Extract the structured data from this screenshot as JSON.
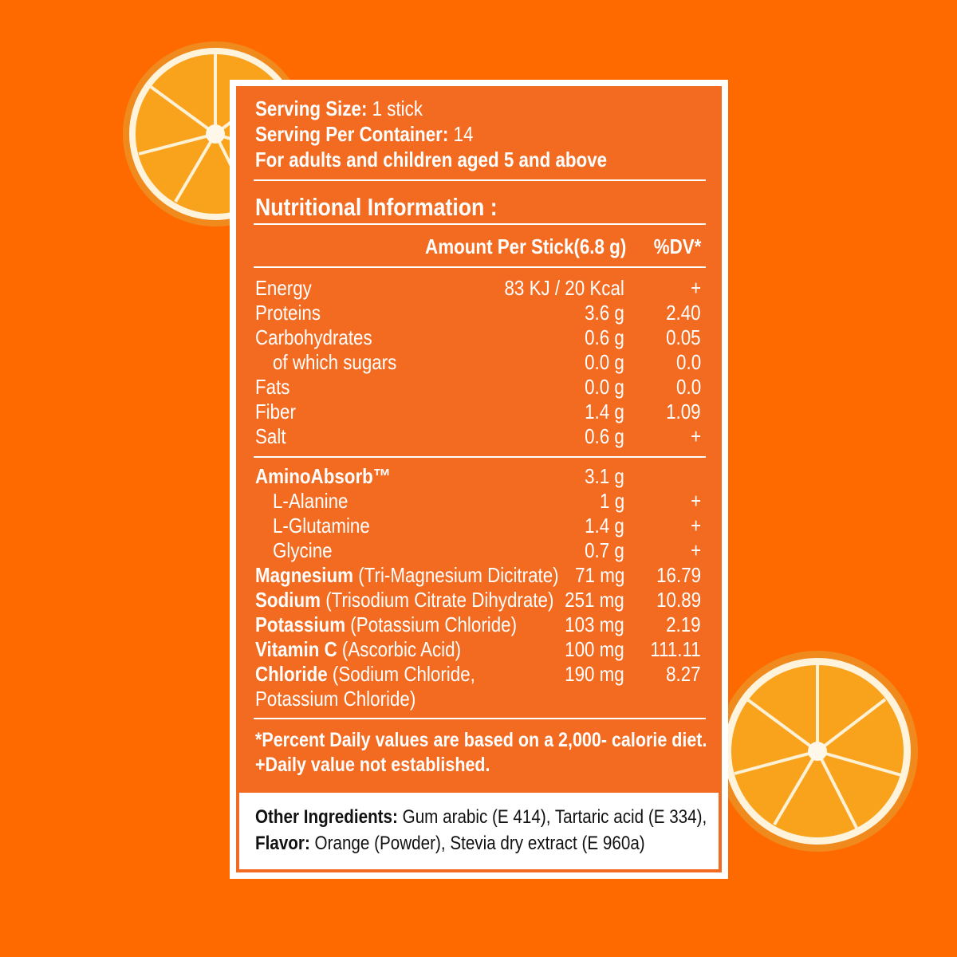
{
  "serving": {
    "size_label": "Serving Size:",
    "size_value": " 1 stick",
    "per_container_label": "Serving Per Container:",
    "per_container_value": " 14",
    "audience": "For adults and children aged 5 and above"
  },
  "nutrition": {
    "title": "Nutritional Information :",
    "col_amount": "Amount Per Stick(6.8 g)",
    "col_dv": "%DV*",
    "group1": [
      {
        "name": "Energy",
        "amount": "83 KJ / 20 Kcal",
        "dv": "+"
      },
      {
        "name": "Proteins",
        "amount": "3.6 g",
        "dv": "2.40"
      },
      {
        "name": "Carbohydrates",
        "amount": "0.6 g",
        "dv": "0.05"
      },
      {
        "name": "of which sugars",
        "amount": "0.0 g",
        "dv": "0.0"
      },
      {
        "name": "Fats",
        "amount": "0.0 g",
        "dv": "0.0"
      },
      {
        "name": "Fiber",
        "amount": "1.4 g",
        "dv": "1.09"
      },
      {
        "name": "Salt",
        "amount": "0.6 g",
        "dv": "+"
      }
    ],
    "group2": [
      {
        "name": "AminoAbsorb™",
        "amount": "3.1 g",
        "dv": ""
      },
      {
        "name": "L-Alanine",
        "amount": "1 g",
        "dv": "+"
      },
      {
        "name": "L-Glutamine",
        "amount": "1.4 g",
        "dv": "+"
      },
      {
        "name": "Glycine",
        "amount": "0.7 g",
        "dv": "+"
      },
      {
        "name": "Magnesium",
        "source": " (Tri-Magnesium Dicitrate)",
        "amount": "71 mg",
        "dv": "16.79"
      },
      {
        "name": "Sodium",
        "source": " (Trisodium Citrate Dihydrate)",
        "amount": "251 mg",
        "dv": "10.89"
      },
      {
        "name": "Potassium",
        "source": " (Potassium Chloride)",
        "amount": "103 mg",
        "dv": "2.19"
      },
      {
        "name": "Vitamin C",
        "source": " (Ascorbic Acid)",
        "amount": "100 mg",
        "dv": "111.11"
      },
      {
        "name": "Chloride",
        "source": " (Sodium Chloride, Potassium Chloride)",
        "amount": "190 mg",
        "dv": "8.27"
      }
    ]
  },
  "footnotes": {
    "line1": "*Percent Daily values are based on a 2,000- calorie diet.",
    "line2": "+Daily value not established."
  },
  "ingredients": {
    "label": "Other Ingredients:",
    "text1": " Gum arabic (E 414), Tartaric acid (E 334),",
    "flavor_label": "Flavor:",
    "text2": " Orange (Powder), Stevia dry extract (E 960a)"
  },
  "colors": {
    "background": "#ff6a00",
    "label": "#f26b21",
    "text": "#ffffff"
  }
}
